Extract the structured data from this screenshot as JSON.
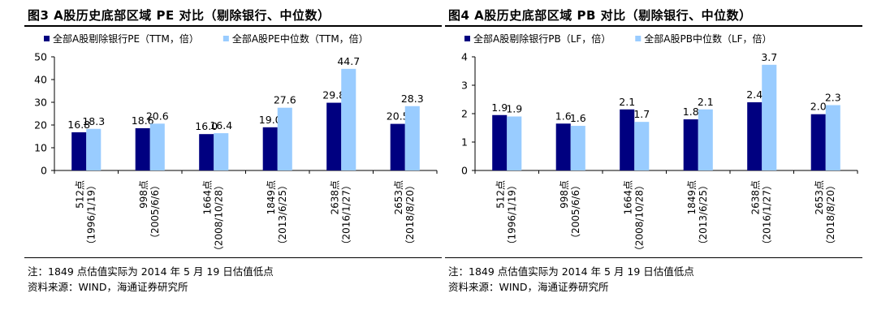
{
  "colors": {
    "series1": "#000080",
    "series2": "#99ccff",
    "axis": "#000000"
  },
  "charts": [
    {
      "title": "图3 A股历史底部区域 PE 对比（剔除银行、中位数）",
      "note": "注：1849 点估值实际为 2014 年 5 月 19 日估值低点",
      "source": "资料来源：WIND，海通证券研究所",
      "chart_data": {
        "type": "bar",
        "categories": [
          {
            "line1": "512点",
            "line2": "（1996/1/19）"
          },
          {
            "line1": "998点",
            "line2": "（2005/6/6）"
          },
          {
            "line1": "1664点",
            "line2": "（2008/10/28）"
          },
          {
            "line1": "1849点",
            "line2": "（2013/6/25）"
          },
          {
            "line1": "2638点",
            "line2": "（2016/1/27）"
          },
          {
            "line1": "2653点",
            "line2": "（2018/8/20）"
          }
        ],
        "series": [
          {
            "name": "全部A股剔除银行PE（TTM，倍）",
            "values": [
              16.8,
              18.6,
              16.0,
              19.0,
              29.8,
              20.5
            ],
            "labels": [
              "16.8",
              "18.6",
              "16.0",
              "19.0",
              "29.8",
              "20.5"
            ]
          },
          {
            "name": "全部A股PE中位数（TTM，倍）",
            "values": [
              18.3,
              20.6,
              16.4,
              27.6,
              44.7,
              28.3
            ],
            "labels": [
              "18.3",
              "20.6",
              "16.4",
              "27.6",
              "44.7",
              "28.3"
            ]
          }
        ],
        "yticks": [
          "0",
          "10",
          "20",
          "30",
          "40",
          "50"
        ],
        "ylim": [
          0,
          50
        ],
        "legend": "top",
        "grid": false
      }
    },
    {
      "title": "图4 A股历史底部区域 PB 对比（剔除银行、中位数）",
      "note": "注：1849 点估值实际为 2014 年 5 月 19 日估值低点",
      "source": "资料来源：WIND，海通证券研究所",
      "chart_data": {
        "type": "bar",
        "categories": [
          {
            "line1": "512点",
            "line2": "（1996/1/19）"
          },
          {
            "line1": "998点",
            "line2": "（2005/6/6）"
          },
          {
            "line1": "1664点",
            "line2": "（2008/10/28）"
          },
          {
            "line1": "1849点",
            "line2": "（2013/6/25）"
          },
          {
            "line1": "2638点",
            "line2": "（2016/1/27）"
          },
          {
            "line1": "2653点",
            "line2": "（2018/8/20）"
          }
        ],
        "series": [
          {
            "name": "全部A股剔除银行PB（LF，倍）",
            "values": [
              1.95,
              1.65,
              2.15,
              1.8,
              2.4,
              1.98
            ],
            "labels": [
              "1.9",
              "1.6",
              "2.1",
              "1.8",
              "2.4",
              "2.0"
            ]
          },
          {
            "name": "全部A股PB中位数（LF，倍）",
            "values": [
              1.9,
              1.57,
              1.71,
              2.15,
              3.72,
              2.3
            ],
            "labels": [
              "1.9",
              "1.6",
              "1.7",
              "2.1",
              "3.7",
              "2.3"
            ]
          }
        ],
        "yticks": [
          "0",
          "1",
          "2",
          "3",
          "4"
        ],
        "ylim": [
          0,
          4
        ],
        "legend": "top",
        "grid": false
      }
    }
  ]
}
